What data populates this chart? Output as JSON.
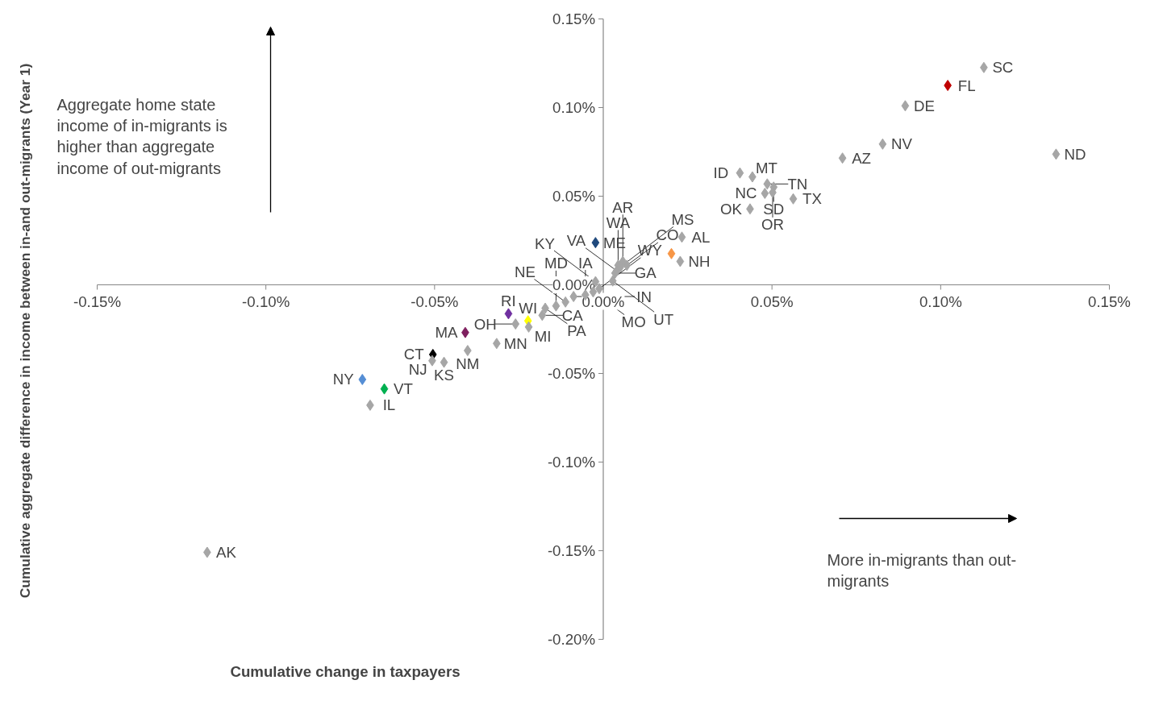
{
  "chart_data": {
    "type": "scatter",
    "xlabel": "Cumulative change in taxpayers",
    "ylabel": "Cumulative aggregate difference in income between in-and out-migrants (Year 1)",
    "xlim": [
      -0.15,
      0.15
    ],
    "ylim": [
      -0.2,
      0.15
    ],
    "xticks": [
      {
        "value": -0.15,
        "label": "-0.15%"
      },
      {
        "value": -0.1,
        "label": "-0.10%"
      },
      {
        "value": -0.05,
        "label": "-0.05%"
      },
      {
        "value": 0,
        "label": "0.00%"
      },
      {
        "value": 0.05,
        "label": "0.05%"
      },
      {
        "value": 0.1,
        "label": "0.10%"
      },
      {
        "value": 0.15,
        "label": "0.15%"
      }
    ],
    "yticks": [
      {
        "value": -0.2,
        "label": "-0.20%"
      },
      {
        "value": -0.15,
        "label": "-0.15%"
      },
      {
        "value": -0.1,
        "label": "-0.10%"
      },
      {
        "value": -0.05,
        "label": "-0.05%"
      },
      {
        "value": 0,
        "label": "0.00%"
      },
      {
        "value": 0.05,
        "label": "0.05%"
      },
      {
        "value": 0.1,
        "label": "0.10%"
      },
      {
        "value": 0.15,
        "label": "0.15%"
      }
    ],
    "grid": false,
    "marker": "diamond",
    "series": [
      {
        "x": [
          0.1128,
          0.1021,
          0.0895,
          0.0828,
          0.0709,
          0.1342,
          0.0405,
          0.0442,
          0.0486,
          0.0505,
          0.0479,
          0.0502,
          0.0563,
          0.0435,
          0.0233,
          0.0202,
          0.0228,
          -0.0023,
          -0.1174,
          -0.0649,
          -0.0714,
          -0.0691,
          -0.0505,
          -0.0507,
          -0.0472,
          -0.0402,
          -0.0409,
          -0.0316,
          -0.026,
          -0.0281,
          -0.0223,
          -0.0221,
          -0.0181,
          -0.0172,
          -0.014,
          -0.0112,
          -0.0088,
          -0.0053,
          -0.003,
          -0.0012,
          -0.0023,
          0.0028,
          0.0035,
          0.004,
          0.0044,
          0.007,
          0.0058,
          0.0051
        ],
        "values": [
          0.1226,
          0.1125,
          0.101,
          0.0794,
          0.0715,
          0.0737,
          0.0631,
          0.0609,
          0.0569,
          0.0551,
          0.0516,
          0.0521,
          0.0485,
          0.0428,
          0.0269,
          0.0176,
          0.0132,
          0.0238,
          -0.1509,
          -0.0587,
          -0.0534,
          -0.0679,
          -0.0393,
          -0.0428,
          -0.0437,
          -0.0371,
          -0.0269,
          -0.0331,
          -0.0221,
          -0.0163,
          -0.0203,
          -0.0238,
          -0.0172,
          -0.0132,
          -0.0119,
          -0.0097,
          -0.0066,
          -0.0057,
          -0.004,
          -0.0022,
          0.0018,
          0.0022,
          0.0066,
          0.0079,
          0.011,
          0.011,
          0.0132,
          0.0101
        ],
        "colors": [
          "#a6a6a6",
          "#c00000",
          "#a6a6a6",
          "#a6a6a6",
          "#a6a6a6",
          "#a6a6a6",
          "#a6a6a6",
          "#a6a6a6",
          "#a6a6a6",
          "#a6a6a6",
          "#a6a6a6",
          "#a6a6a6",
          "#a6a6a6",
          "#a6a6a6",
          "#a6a6a6",
          "#f79646",
          "#a6a6a6",
          "#1f497d",
          "#a6a6a6",
          "#00b050",
          "#558ed5",
          "#a6a6a6",
          "#000000",
          "#a6a6a6",
          "#a6a6a6",
          "#a6a6a6",
          "#7f1f5f",
          "#a6a6a6",
          "#a6a6a6",
          "#7030a0",
          "#ffff00",
          "#a6a6a6",
          "#a6a6a6",
          "#a6a6a6",
          "#a6a6a6",
          "#a6a6a6",
          "#a6a6a6",
          "#a6a6a6",
          "#a6a6a6",
          "#a6a6a6",
          "#a6a6a6",
          "#a6a6a6",
          "#a6a6a6",
          "#a6a6a6",
          "#a6a6a6",
          "#a6a6a6",
          "#a6a6a6",
          "#a6a6a6"
        ]
      }
    ],
    "annotations": [
      "Aggregate home state income of in-migrants is higher than aggregate income of out-migrants",
      "More in-migrants than out-migrants",
      {
        "text": "SC",
        "x": 0.1128,
        "y": 0.1226
      },
      {
        "text": "FL",
        "x": 0.1021,
        "y": 0.1125
      },
      {
        "text": "DE",
        "x": 0.0895,
        "y": 0.101
      },
      {
        "text": "NV",
        "x": 0.0828,
        "y": 0.0794
      },
      {
        "text": "AZ",
        "x": 0.0709,
        "y": 0.0715
      },
      {
        "text": "ND",
        "x": 0.1342,
        "y": 0.0737
      },
      {
        "text": "ID",
        "x": 0.0405,
        "y": 0.0631
      },
      {
        "text": "MT",
        "x": 0.0442,
        "y": 0.0609
      },
      {
        "text": "TN",
        "x": 0.0486,
        "y": 0.0569
      },
      {
        "text": "SD",
        "x": 0.0505,
        "y": 0.0551
      },
      {
        "text": "NC",
        "x": 0.0479,
        "y": 0.0516
      },
      {
        "text": "OR",
        "x": 0.0502,
        "y": 0.0521
      },
      {
        "text": "TX",
        "x": 0.0563,
        "y": 0.0485
      },
      {
        "text": "OK",
        "x": 0.0435,
        "y": 0.0428
      },
      {
        "text": "AL",
        "x": 0.0233,
        "y": 0.0269
      },
      {
        "text": "NH",
        "x": 0.0228,
        "y": 0.0132
      },
      {
        "text": "ME",
        "x": -0.0023,
        "y": 0.0238
      },
      {
        "text": "AK",
        "x": -0.1174,
        "y": -0.1509
      },
      {
        "text": "VT",
        "x": -0.0649,
        "y": -0.0587
      },
      {
        "text": "NY",
        "x": -0.0714,
        "y": -0.0534
      },
      {
        "text": "IL",
        "x": -0.0691,
        "y": -0.0679
      },
      {
        "text": "CT",
        "x": -0.0505,
        "y": -0.0393
      },
      {
        "text": "NJ",
        "x": -0.0507,
        "y": -0.0428
      },
      {
        "text": "KS",
        "x": -0.0472,
        "y": -0.0437
      },
      {
        "text": "NM",
        "x": -0.0402,
        "y": -0.0371
      },
      {
        "text": "MA",
        "x": -0.0409,
        "y": -0.0269
      },
      {
        "text": "MN",
        "x": -0.0316,
        "y": -0.0331
      },
      {
        "text": "OH",
        "x": -0.026,
        "y": -0.0221
      },
      {
        "text": "RI",
        "x": -0.0281,
        "y": -0.0163
      },
      {
        "text": "WI",
        "x": -0.0223,
        "y": -0.0203
      },
      {
        "text": "MI",
        "x": -0.0221,
        "y": -0.0238
      },
      {
        "text": "CA",
        "x": -0.0181,
        "y": -0.0172
      },
      {
        "text": "PA",
        "x": -0.0172,
        "y": -0.0132
      },
      {
        "text": "MD",
        "x": -0.014,
        "y": -0.0119
      },
      {
        "text": "NE",
        "x": -0.0112,
        "y": -0.0097
      },
      {
        "text": "IN",
        "x": -0.0088,
        "y": -0.0066
      },
      {
        "text": "IA",
        "x": -0.0053,
        "y": -0.0057
      },
      {
        "text": "MO",
        "x": -0.003,
        "y": -0.004
      },
      {
        "text": "WY",
        "x": -0.0012,
        "y": -0.0022
      },
      {
        "text": "KY",
        "x": -0.0023,
        "y": 0.0018
      },
      {
        "text": "UT",
        "x": 0.0028,
        "y": 0.0022
      },
      {
        "text": "GA",
        "x": 0.0035,
        "y": 0.0066
      },
      {
        "text": "VA",
        "x": 0.004,
        "y": 0.0079
      },
      {
        "text": "WA",
        "x": 0.0044,
        "y": 0.011
      },
      {
        "text": "CO",
        "x": 0.007,
        "y": 0.011
      },
      {
        "text": "AR",
        "x": 0.0058,
        "y": 0.0132
      },
      {
        "text": "MS",
        "x": 0.0051,
        "y": 0.0101
      }
    ]
  }
}
